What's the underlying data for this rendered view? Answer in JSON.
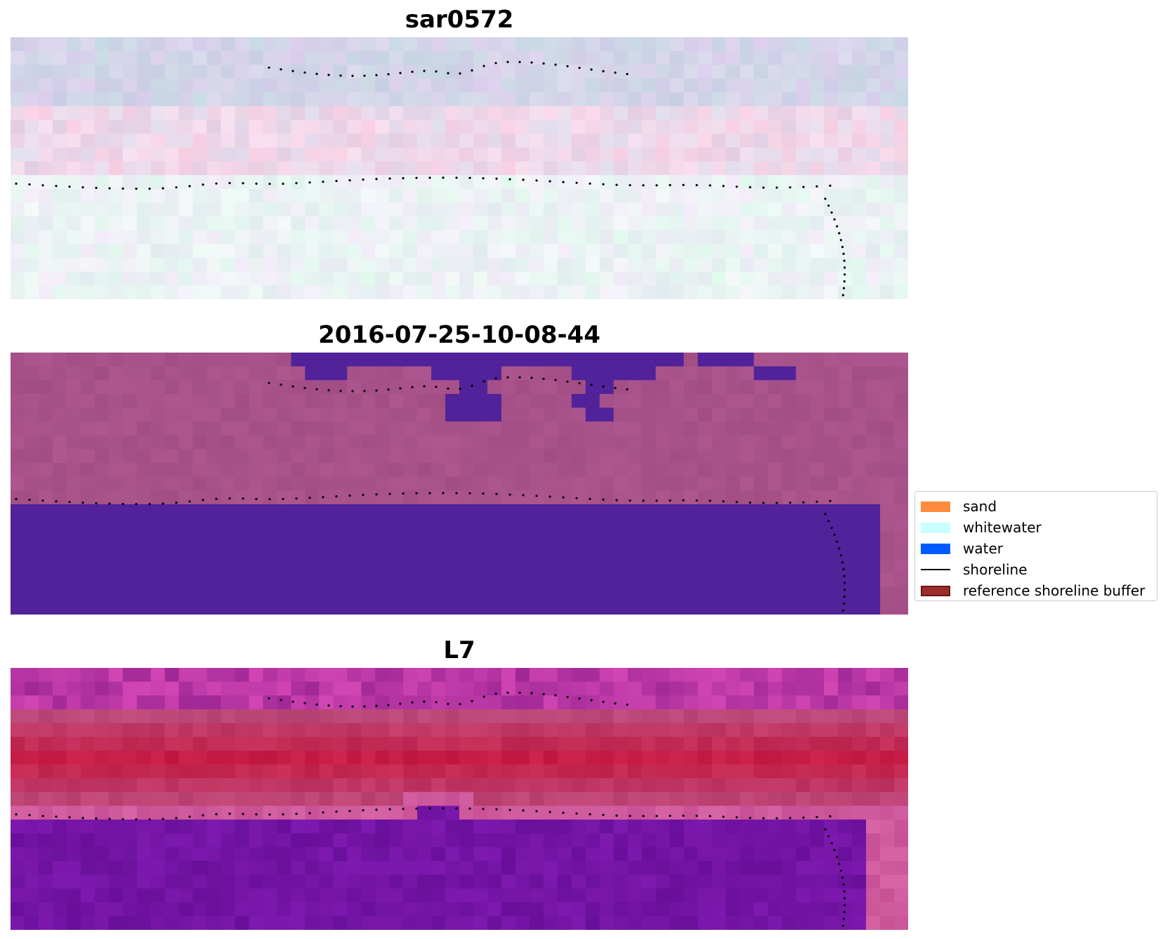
{
  "panels": [
    {
      "title": "sar0572",
      "palette": "rgb"
    },
    {
      "title": "2016-07-25-10-08-44",
      "palette": "classified"
    },
    {
      "title": "L7",
      "palette": "swir"
    }
  ],
  "legend": {
    "items": [
      {
        "label": "sand",
        "color": "#ff8c3c",
        "kind": "patch"
      },
      {
        "label": "whitewater",
        "color": "#c8ffff",
        "kind": "patch"
      },
      {
        "label": "water",
        "color": "#005aff",
        "kind": "patch"
      },
      {
        "label": "shoreline",
        "color": "#000000",
        "kind": "line"
      },
      {
        "label": "reference shoreline buffer",
        "color": "#9b2d2d",
        "kind": "patch",
        "edge": "#6b1515"
      }
    ]
  },
  "colors": {
    "rgb_base": "#dcdcea",
    "classified_land": "#a8528a",
    "classified_water": "#51229a",
    "swir_red": "#bc1040",
    "swir_purple": "#6e1a9e"
  }
}
